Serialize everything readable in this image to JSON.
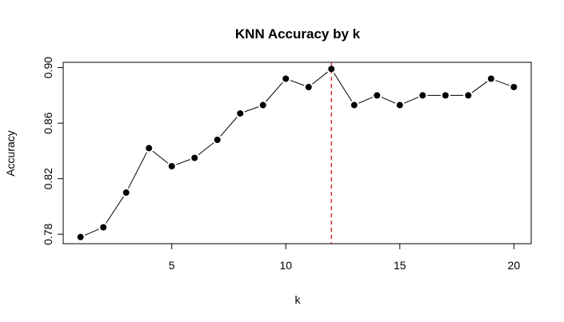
{
  "chart_data": {
    "type": "line",
    "title": "KNN Accuracy by k",
    "xlabel": "k",
    "ylabel": "Accuracy",
    "x": [
      1,
      2,
      3,
      4,
      5,
      6,
      7,
      8,
      9,
      10,
      11,
      12,
      13,
      14,
      15,
      16,
      17,
      18,
      19,
      20
    ],
    "y": [
      0.778,
      0.785,
      0.81,
      0.842,
      0.829,
      0.835,
      0.848,
      0.867,
      0.873,
      0.892,
      0.886,
      0.899,
      0.873,
      0.88,
      0.873,
      0.88,
      0.88,
      0.88,
      0.892,
      0.886
    ],
    "xlim": [
      0.24,
      20.76
    ],
    "ylim": [
      0.7732,
      0.9038
    ],
    "xticks": [
      5,
      10,
      15,
      20
    ],
    "yticks": [
      0.78,
      0.82,
      0.86,
      0.9
    ],
    "xtick_labels": [
      "5",
      "10",
      "15",
      "20"
    ],
    "ytick_labels": [
      "0.78",
      "0.82",
      "0.86",
      "0.90"
    ],
    "vline": {
      "x": 12,
      "color": "#dd0000",
      "style": "dashed"
    },
    "series_color": "#000000",
    "grid": false,
    "legend": "none"
  }
}
